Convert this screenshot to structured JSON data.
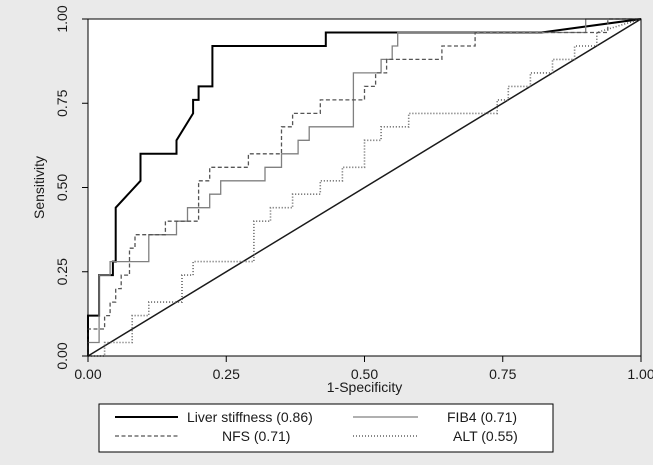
{
  "chart_data": {
    "type": "line",
    "xlabel": "1-Specificity",
    "ylabel": "Sensitivity",
    "xlim": [
      0,
      1
    ],
    "ylim": [
      0,
      1
    ],
    "x_ticks": [
      "0.00",
      "0.25",
      "0.50",
      "0.75",
      "1.00"
    ],
    "y_ticks": [
      "0.00",
      "0.25",
      "0.50",
      "0.75",
      "1.00"
    ],
    "grid": false,
    "legend_position": "bottom",
    "reference_line": {
      "x": [
        0,
        1
      ],
      "y": [
        0,
        1
      ]
    },
    "series": [
      {
        "name": "Liver stiffness (0.86)",
        "style": "solid-thick",
        "color": "#000000",
        "x": [
          0,
          0,
          0.02,
          0.02,
          0.045,
          0.045,
          0.05,
          0.05,
          0.095,
          0.095,
          0.16,
          0.16,
          0.19,
          0.19,
          0.2,
          0.2,
          0.21,
          0.21,
          0.225,
          0.225,
          0.43,
          0.43,
          0.82,
          0.82,
          1.0
        ],
        "y": [
          0,
          0.12,
          0.12,
          0.24,
          0.24,
          0.28,
          0.28,
          0.44,
          0.52,
          0.6,
          0.6,
          0.64,
          0.72,
          0.76,
          0.76,
          0.8,
          0.8,
          0.8,
          0.8,
          0.92,
          0.92,
          0.96,
          0.96,
          0.96,
          1.0
        ]
      },
      {
        "name": "FIB4 (0.71)",
        "style": "solid-thin",
        "color": "#808080",
        "x": [
          0,
          0,
          0.02,
          0.02,
          0.04,
          0.04,
          0.06,
          0.06,
          0.11,
          0.11,
          0.16,
          0.16,
          0.18,
          0.18,
          0.22,
          0.22,
          0.24,
          0.24,
          0.28,
          0.28,
          0.32,
          0.32,
          0.35,
          0.35,
          0.38,
          0.38,
          0.4,
          0.4,
          0.45,
          0.45,
          0.48,
          0.48,
          0.5,
          0.5,
          0.53,
          0.53,
          0.55,
          0.55,
          0.56,
          0.56,
          0.57,
          0.57,
          0.9,
          0.9,
          1.0
        ],
        "y": [
          0,
          0.04,
          0.04,
          0.24,
          0.24,
          0.28,
          0.28,
          0.28,
          0.28,
          0.36,
          0.36,
          0.4,
          0.4,
          0.44,
          0.44,
          0.48,
          0.48,
          0.52,
          0.52,
          0.52,
          0.52,
          0.56,
          0.56,
          0.6,
          0.6,
          0.64,
          0.64,
          0.68,
          0.68,
          0.68,
          0.68,
          0.84,
          0.84,
          0.84,
          0.84,
          0.88,
          0.88,
          0.92,
          0.92,
          0.96,
          0.96,
          0.96,
          0.96,
          1.0,
          1.0
        ]
      },
      {
        "name": "NFS (0.71)",
        "style": "dashed",
        "color": "#555555",
        "x": [
          0,
          0,
          0.03,
          0.03,
          0.04,
          0.04,
          0.05,
          0.05,
          0.06,
          0.06,
          0.075,
          0.075,
          0.085,
          0.085,
          0.14,
          0.14,
          0.2,
          0.2,
          0.22,
          0.22,
          0.29,
          0.29,
          0.35,
          0.35,
          0.37,
          0.37,
          0.42,
          0.42,
          0.5,
          0.5,
          0.52,
          0.52,
          0.54,
          0.54,
          0.56,
          0.56,
          0.64,
          0.64,
          0.7,
          0.7,
          0.78,
          0.78,
          0.9,
          0.9,
          0.94,
          0.94,
          1.0
        ],
        "y": [
          0,
          0.08,
          0.08,
          0.12,
          0.12,
          0.16,
          0.16,
          0.2,
          0.2,
          0.24,
          0.24,
          0.32,
          0.32,
          0.36,
          0.36,
          0.4,
          0.4,
          0.52,
          0.52,
          0.56,
          0.56,
          0.6,
          0.6,
          0.68,
          0.68,
          0.72,
          0.72,
          0.76,
          0.76,
          0.8,
          0.8,
          0.84,
          0.84,
          0.88,
          0.88,
          0.88,
          0.88,
          0.92,
          0.92,
          0.96,
          0.96,
          0.96,
          0.96,
          0.96,
          0.96,
          1.0,
          1.0
        ]
      },
      {
        "name": "ALT (0.55)",
        "style": "dotted",
        "color": "#606060",
        "x": [
          0,
          0.03,
          0.03,
          0.08,
          0.08,
          0.11,
          0.11,
          0.17,
          0.17,
          0.19,
          0.19,
          0.3,
          0.3,
          0.33,
          0.33,
          0.37,
          0.37,
          0.42,
          0.42,
          0.46,
          0.46,
          0.5,
          0.5,
          0.53,
          0.53,
          0.58,
          0.58,
          0.74,
          0.74,
          0.76,
          0.76,
          0.8,
          0.8,
          0.84,
          0.84,
          0.88,
          0.88,
          0.92,
          0.92,
          1.0
        ],
        "y": [
          0,
          0,
          0.04,
          0.04,
          0.12,
          0.12,
          0.16,
          0.16,
          0.24,
          0.24,
          0.28,
          0.28,
          0.4,
          0.4,
          0.44,
          0.44,
          0.48,
          0.48,
          0.52,
          0.52,
          0.56,
          0.56,
          0.64,
          0.64,
          0.68,
          0.68,
          0.72,
          0.72,
          0.76,
          0.76,
          0.8,
          0.8,
          0.84,
          0.84,
          0.88,
          0.88,
          0.92,
          0.92,
          0.96,
          1.0
        ]
      }
    ]
  },
  "legend": {
    "items": [
      {
        "label": "Liver stiffness (0.86)"
      },
      {
        "label": "FIB4 (0.71)"
      },
      {
        "label": "NFS (0.71)"
      },
      {
        "label": "ALT (0.55)"
      }
    ]
  }
}
